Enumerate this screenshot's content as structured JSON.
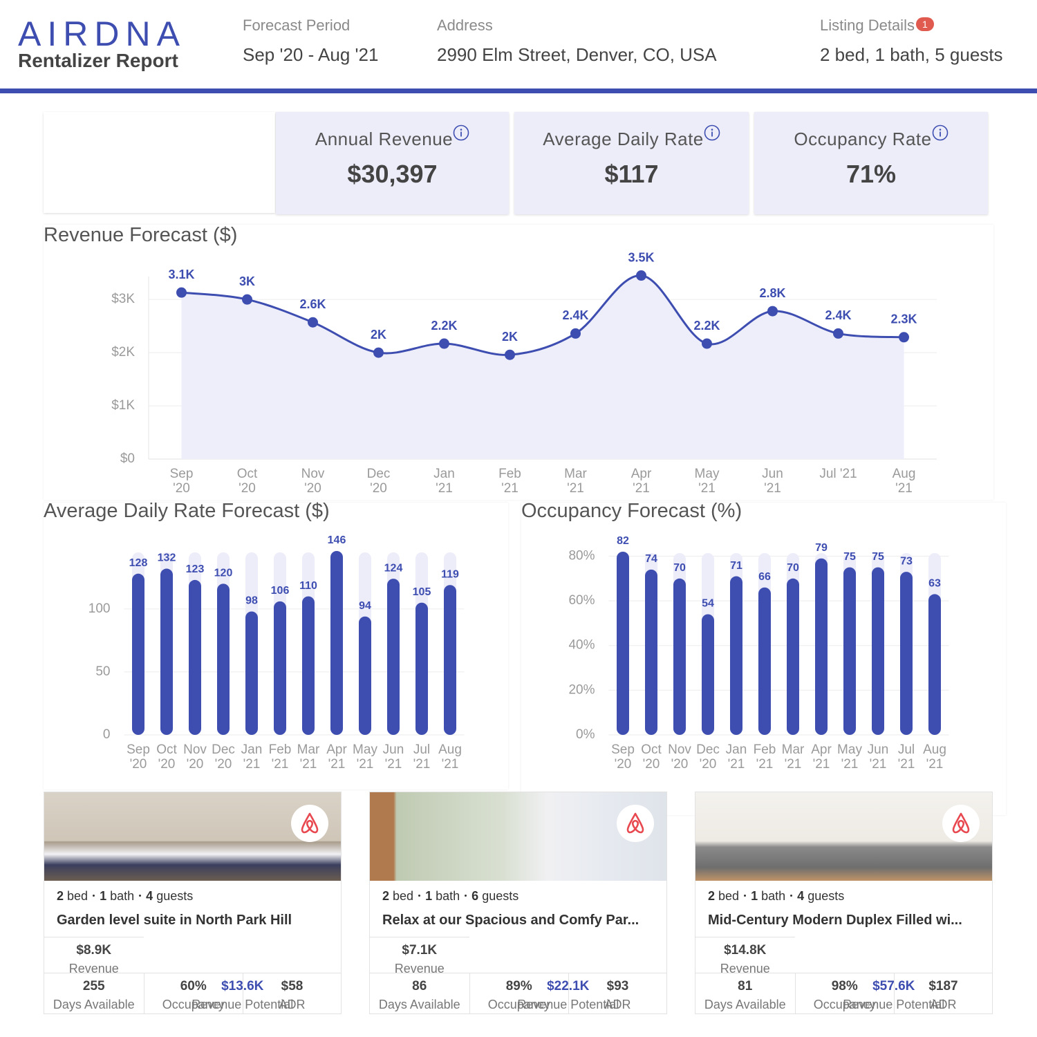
{
  "header": {
    "logo": "AIRDNA",
    "report_title": "Rentalizer Report",
    "fields": [
      {
        "label": "Forecast Period",
        "value": "Sep '20 - Aug '21"
      },
      {
        "label": "Address",
        "value": "2990 Elm Street, Denver, CO, USA"
      },
      {
        "label": "Listing Details",
        "badge": 1,
        "value": "2 bed, 1 bath, 5 guests"
      }
    ]
  },
  "kpis": [
    {
      "label": "Annual Revenue",
      "value": "$30,397"
    },
    {
      "label": "Average Daily Rate",
      "value": "$117"
    },
    {
      "label": "Occupancy Rate",
      "value": "71%"
    }
  ],
  "chart_data": [
    {
      "type": "line",
      "title": "Revenue Forecast ($)",
      "categories": [
        "Sep '20",
        "Oct '20",
        "Nov '20",
        "Dec '20",
        "Jan '21",
        "Feb '21",
        "Mar '21",
        "Apr '21",
        "May '21",
        "Jun '21",
        "Jul '21",
        "Aug '21"
      ],
      "values": [
        3130,
        3000,
        2570,
        2000,
        2170,
        1960,
        2360,
        3450,
        2170,
        2780,
        2360,
        2290
      ],
      "value_labels": [
        "3.1K",
        "3K",
        "2.6K",
        "2K",
        "2.2K",
        "2K",
        "2.4K",
        "3.5K",
        "2.2K",
        "2.8K",
        "2.4K",
        "2.3K"
      ],
      "color": "#3d4db0",
      "fill_color": "#eeeefa",
      "ylim": [
        0,
        3600
      ],
      "yticks": [
        {
          "value": 0,
          "label": "$0"
        },
        {
          "value": 1000,
          "label": "$1K"
        },
        {
          "value": 2000,
          "label": "$2K"
        },
        {
          "value": 3000,
          "label": "$3K"
        }
      ],
      "grid": true
    },
    {
      "type": "bar",
      "title": "Average Daily Rate Forecast ($)",
      "categories": [
        "Sep '20",
        "Oct '20",
        "Nov '20",
        "Dec '20",
        "Jan '21",
        "Feb '21",
        "Mar '21",
        "Apr '21",
        "May '21",
        "Jun '21",
        "Jul '21",
        "Aug '21"
      ],
      "values": [
        128,
        132,
        123,
        120,
        98,
        106,
        110,
        146,
        94,
        124,
        105,
        119
      ],
      "color": "#3d4db0",
      "track_color": "#ededfa",
      "ylim": [
        0,
        146
      ],
      "yticks": [
        0,
        50,
        100
      ],
      "grid": true
    },
    {
      "type": "bar",
      "title": "Occupancy Forecast (%)",
      "categories": [
        "Sep '20",
        "Oct '20",
        "Nov '20",
        "Dec '20",
        "Jan '21",
        "Feb '21",
        "Mar '21",
        "Apr '21",
        "May '21",
        "Jun '21",
        "Jul '21",
        "Aug '21"
      ],
      "values": [
        82,
        74,
        70,
        54,
        71,
        66,
        70,
        79,
        75,
        75,
        73,
        63
      ],
      "color": "#3d4db0",
      "track_color": "#ededfa",
      "ylim": [
        0,
        82
      ],
      "yticks": [
        {
          "value": 0,
          "label": "0%"
        },
        {
          "value": 20,
          "label": "20%"
        },
        {
          "value": 40,
          "label": "40%"
        },
        {
          "value": 60,
          "label": "60%"
        },
        {
          "value": 80,
          "label": "80%"
        }
      ],
      "grid": true
    }
  ],
  "listings": [
    {
      "details": [
        {
          "value": 2,
          "unit": "bed"
        },
        {
          "value": 1,
          "unit": "bath"
        },
        {
          "value": 4,
          "unit": "guests"
        }
      ],
      "title": "Garden level suite in North Park Hill",
      "stats": [
        {
          "value": "$8.9K",
          "label": "Revenue"
        },
        {
          "value": "$13.6K",
          "label": "Revenue Potential"
        },
        {
          "value": 255,
          "label": "Days Available"
        },
        {
          "value": "60%",
          "label": "Occupancy"
        },
        {
          "value": "$58",
          "label": "ADR"
        }
      ]
    },
    {
      "details": [
        {
          "value": 2,
          "unit": "bed"
        },
        {
          "value": 1,
          "unit": "bath"
        },
        {
          "value": 6,
          "unit": "guests"
        }
      ],
      "title": "Relax at our Spacious and Comfy Par...",
      "stats": [
        {
          "value": "$7.1K",
          "label": "Revenue"
        },
        {
          "value": "$22.1K",
          "label": "Revenue Potential"
        },
        {
          "value": 86,
          "label": "Days Available"
        },
        {
          "value": "89%",
          "label": "Occupancy"
        },
        {
          "value": "$93",
          "label": "ADR"
        }
      ]
    },
    {
      "details": [
        {
          "value": 2,
          "unit": "bed"
        },
        {
          "value": 1,
          "unit": "bath"
        },
        {
          "value": 4,
          "unit": "guests"
        }
      ],
      "title": "Mid-Century Modern Duplex Filled wi...",
      "stats": [
        {
          "value": "$14.8K",
          "label": "Revenue"
        },
        {
          "value": "$57.6K",
          "label": "Revenue Potential"
        },
        {
          "value": 81,
          "label": "Days Available"
        },
        {
          "value": "98%",
          "label": "Occupancy"
        },
        {
          "value": "$187",
          "label": "ADR"
        }
      ]
    }
  ]
}
